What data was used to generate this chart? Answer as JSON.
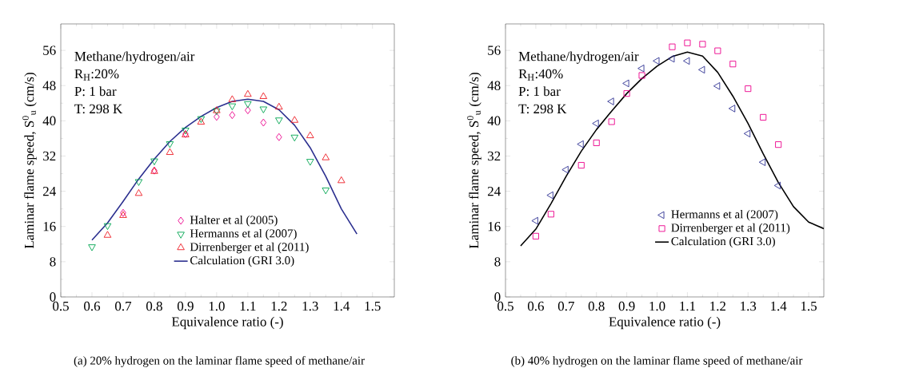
{
  "chart_data": [
    {
      "type": "scatter",
      "title": "(a) 20% hydrogen on the laminar flame speed of methane/air",
      "xlabel": "Equivalence ratio (-)",
      "ylabel": "Laminar flame speed, S$^{0}$$_{u}$ (cm/s)",
      "annotations": [
        "Methane/hydrogen/air",
        "R$_{H}$:20%",
        "P: 1 bar",
        "T: 298 K"
      ],
      "xlim": [
        0.5,
        1.57
      ],
      "ylim": [
        0,
        62
      ],
      "xticks": [
        0.5,
        0.6,
        0.7,
        0.8,
        0.9,
        {
          "value": 1,
          "label": "1.0"
        },
        1.1,
        1.2,
        1.3,
        1.4,
        1.5
      ],
      "yticks": [
        0,
        8,
        16,
        24,
        32,
        40,
        48,
        56
      ],
      "grid": false,
      "legend": "bottom right",
      "series": [
        {
          "name": "Halter et al (2005)",
          "type": "scatter",
          "marker": "diamond",
          "color": "#ec008c",
          "x": [
            0.7,
            0.8,
            0.9,
            1.0,
            1.05,
            1.1,
            1.15,
            1.2
          ],
          "values": [
            19.1,
            28.7,
            37.0,
            40.9,
            41.3,
            42.4,
            39.6,
            36.3
          ]
        },
        {
          "name": "Hermanns et al (2007)",
          "type": "scatter",
          "marker": "triangle-down",
          "color": "#00a651",
          "x": [
            0.6,
            0.65,
            0.75,
            0.8,
            0.85,
            0.9,
            0.95,
            1.0,
            1.05,
            1.1,
            1.15,
            1.2,
            1.25,
            1.3,
            1.35
          ],
          "values": [
            11.4,
            16.2,
            26.2,
            30.9,
            34.8,
            37.9,
            40.5,
            42.3,
            43.4,
            43.9,
            42.7,
            40.2,
            36.3,
            30.8,
            24.3
          ]
        },
        {
          "name": "Dirrenberger et al (2011)",
          "type": "scatter",
          "marker": "triangle",
          "color": "#ed1c24",
          "x": [
            0.65,
            0.7,
            0.75,
            0.8,
            0.85,
            0.9,
            0.95,
            1.0,
            1.05,
            1.1,
            1.15,
            1.2,
            1.25,
            1.3,
            1.35,
            1.4
          ],
          "values": [
            14.0,
            18.5,
            23.5,
            28.5,
            32.8,
            36.8,
            39.7,
            42.3,
            44.8,
            46.0,
            45.5,
            43.1,
            40.1,
            36.6,
            31.6,
            26.4
          ]
        },
        {
          "name": "Calculation (GRI 3.0)",
          "type": "line",
          "marker": "none",
          "color": "#2b2f8f",
          "x": [
            0.6,
            0.65,
            0.7,
            0.75,
            0.8,
            0.85,
            0.9,
            0.95,
            1.0,
            1.05,
            1.1,
            1.15,
            1.2,
            1.25,
            1.3,
            1.35,
            1.4,
            1.45
          ],
          "values": [
            12.9,
            16.8,
            21.7,
            26.8,
            31.3,
            35.3,
            38.5,
            41.0,
            43.0,
            44.4,
            44.9,
            44.4,
            42.5,
            39.0,
            33.9,
            27.4,
            20.0,
            14.3
          ]
        }
      ]
    },
    {
      "type": "scatter",
      "title": "(b) 40% hydrogen on the laminar flame speed of methane/air",
      "xlabel": "Equivalence ratio (-)",
      "ylabel": "Laminar flame speed, S$^{0}$$_{u}$ (cm/s)",
      "annotations": [
        "Methane/hydrogen/air",
        "R$_{H}$:40%",
        "P: 1 bar",
        "T: 298 K"
      ],
      "xlim": [
        0.5,
        1.55
      ],
      "ylim": [
        0,
        62
      ],
      "xticks": [
        0.5,
        0.6,
        0.7,
        0.8,
        0.9,
        {
          "value": 1,
          "label": "1.0"
        },
        1.1,
        1.2,
        1.3,
        1.4,
        1.5
      ],
      "yticks": [
        0,
        8,
        16,
        24,
        32,
        40,
        48,
        56
      ],
      "grid": false,
      "legend": "right",
      "series": [
        {
          "name": "Hermanns et al (2007)",
          "type": "scatter",
          "marker": "triangle-left",
          "color": "#2e3192",
          "x": [
            0.6,
            0.65,
            0.7,
            0.75,
            0.8,
            0.85,
            0.9,
            0.95,
            1.0,
            1.05,
            1.1,
            1.15,
            1.2,
            1.25,
            1.3,
            1.35,
            1.4
          ],
          "values": [
            17.3,
            23.1,
            28.9,
            34.7,
            39.4,
            44.4,
            48.5,
            51.9,
            53.6,
            54.1,
            53.6,
            51.6,
            47.9,
            42.8,
            37.1,
            30.6,
            25.3
          ]
        },
        {
          "name": "Dirrenberger et al (2011)",
          "type": "scatter",
          "marker": "square",
          "color": "#ec008c",
          "x": [
            0.6,
            0.65,
            0.75,
            0.8,
            0.85,
            0.9,
            0.95,
            1.05,
            1.1,
            1.15,
            1.2,
            1.25,
            1.3,
            1.35,
            1.4
          ],
          "values": [
            13.8,
            18.8,
            29.9,
            35.0,
            39.8,
            46.2,
            50.3,
            56.8,
            57.7,
            57.4,
            55.9,
            52.9,
            47.3,
            40.8,
            34.6
          ]
        },
        {
          "name": "Calculation (GRI 3.0)",
          "type": "line",
          "marker": "none",
          "color": "#000000",
          "x": [
            0.55,
            0.6,
            0.65,
            0.7,
            0.75,
            0.8,
            0.85,
            0.9,
            0.95,
            1.0,
            1.05,
            1.1,
            1.15,
            1.2,
            1.25,
            1.3,
            1.35,
            1.4,
            1.45,
            1.5,
            1.55
          ],
          "values": [
            11.6,
            15.4,
            21.2,
            27.4,
            33.1,
            38.0,
            42.2,
            46.2,
            49.6,
            52.4,
            54.6,
            55.6,
            54.7,
            51.0,
            45.6,
            39.4,
            32.5,
            26.0,
            20.5,
            17.0,
            15.5
          ]
        }
      ]
    }
  ]
}
